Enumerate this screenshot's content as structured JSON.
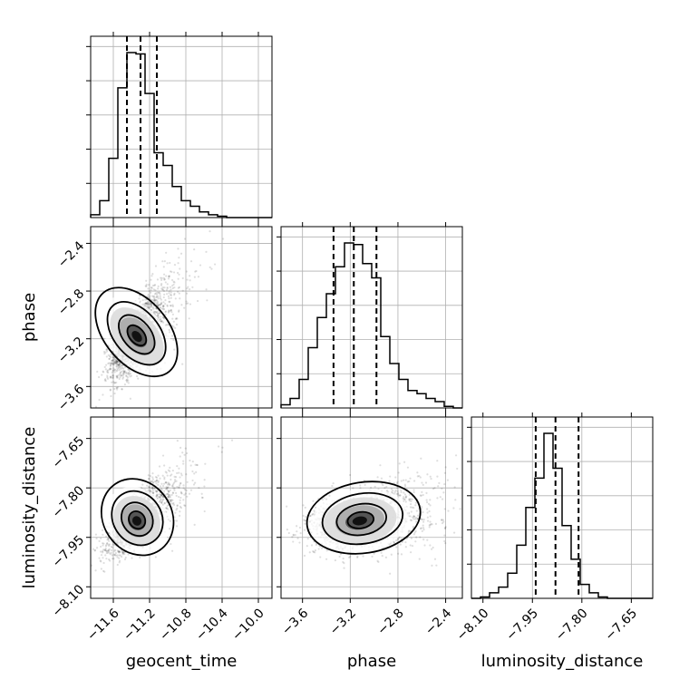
{
  "chart_data": {
    "type": "corner",
    "parameters": [
      "geocent_time",
      "phase",
      "luminosity_distance"
    ],
    "grid": true,
    "quantile_lines": "dashed",
    "ranges": {
      "geocent_time": [
        -11.85,
        -9.85
      ],
      "phase": [
        -3.78,
        -2.26
      ],
      "luminosity_distance": [
        -8.135,
        -7.585
      ]
    },
    "ticks": {
      "geocent_time": [
        "−11.6",
        "−11.2",
        "−10.8",
        "−10.4",
        "−10.0"
      ],
      "phase": [
        "−3.6",
        "−3.2",
        "−2.8",
        "−2.4"
      ],
      "luminosity_distance": [
        "−8.10",
        "−7.95",
        "−7.80",
        "−7.65"
      ]
    },
    "tick_values": {
      "geocent_time": [
        -11.6,
        -11.2,
        -10.8,
        -10.4,
        -10.0
      ],
      "phase": [
        -3.6,
        -3.2,
        -2.8,
        -2.4
      ],
      "luminosity_distance": [
        -8.1,
        -7.95,
        -7.8,
        -7.65
      ]
    },
    "marginals": {
      "geocent_time": {
        "bin_edges_start": -11.85,
        "bin_width": 0.1,
        "counts": [
          2,
          12,
          42,
          92,
          117,
          116,
          88,
          46,
          37,
          22,
          12,
          8,
          4,
          2,
          1,
          0,
          0,
          0,
          0,
          0
        ],
        "quantiles": [
          -11.45,
          -11.3,
          -11.12
        ]
      },
      "phase": {
        "bin_edges_start": -3.78,
        "bin_width": 0.076,
        "counts": [
          2,
          6,
          18,
          38,
          57,
          72,
          89,
          104,
          103,
          91,
          82,
          45,
          28,
          18,
          11,
          9,
          6,
          4,
          1,
          0
        ],
        "quantiles": [
          -3.34,
          -3.17,
          -2.98
        ]
      },
      "luminosity_distance": {
        "bin_edges_start": -8.135,
        "bin_width": 0.0275,
        "counts": [
          0,
          1,
          4,
          8,
          18,
          38,
          65,
          86,
          118,
          93,
          52,
          28,
          10,
          4,
          1,
          0,
          0,
          0,
          0,
          0
        ],
        "quantiles": [
          -7.94,
          -7.88,
          -7.81
        ]
      }
    },
    "pairs": [
      {
        "x": "geocent_time",
        "y": "phase",
        "peak": [
          -11.34,
          -3.18
        ],
        "spread": [
          0.14,
          0.16
        ],
        "corr": 0.65
      },
      {
        "x": "geocent_time",
        "y": "luminosity_distance",
        "peak": [
          -11.34,
          -7.9
        ],
        "spread": [
          0.15,
          0.045
        ],
        "corr": 0.7
      },
      {
        "x": "phase",
        "y": "luminosity_distance",
        "peak": [
          -3.12,
          -7.9
        ],
        "spread": [
          0.19,
          0.04
        ],
        "corr": 0.3
      }
    ]
  }
}
